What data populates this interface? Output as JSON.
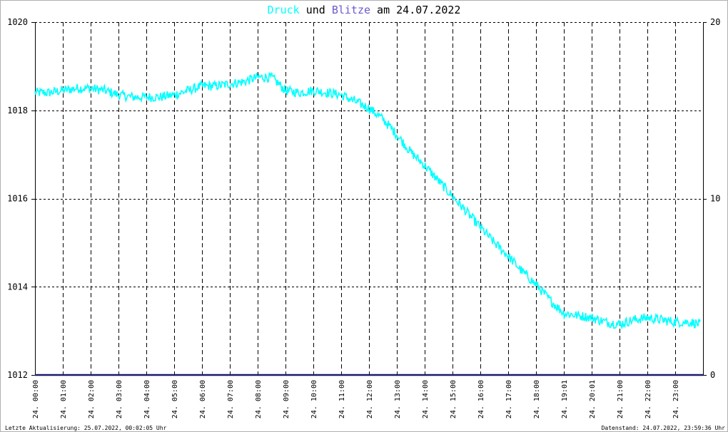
{
  "title": {
    "part1": "Druck",
    "part2": " und ",
    "part3": "Blitze",
    "part4": " am 24.07.2022",
    "color1": "#00ffff",
    "color3": "#6a5acd",
    "color_text": "#000000"
  },
  "footer": {
    "left": "Letzte Aktualisierung: 25.07.2022, 00:02:05 Uhr",
    "right": "Datenstand: 24.07.2022, 23:59:36 Uhr"
  },
  "chart_data": {
    "type": "line",
    "title": "Druck und Blitze am 24.07.2022",
    "ylim_left": [
      1012,
      1020
    ],
    "yticks_left": [
      "1020",
      "1018",
      "1016",
      "1014",
      "1012"
    ],
    "ylim_right": [
      0,
      20
    ],
    "yticks_right": [
      "20",
      "10",
      "0"
    ],
    "xlim_hours": [
      0,
      24
    ],
    "x_tick_labels": [
      "24. 00:00",
      "24. 01:00",
      "24. 02:00",
      "24. 03:00",
      "24. 04:00",
      "24. 05:00",
      "24. 06:00",
      "24. 07:00",
      "24. 08:00",
      "24. 09:00",
      "24. 10:00",
      "24. 11:00",
      "24. 12:00",
      "24. 13:00",
      "24. 14:00",
      "24. 15:00",
      "24. 16:00",
      "24. 17:00",
      "24. 18:00",
      "24. 19:01",
      "24. 20:01",
      "24. 21:00",
      "24. 22:00",
      "24. 23:00"
    ],
    "x_tick_hours": [
      0,
      1,
      2,
      3,
      4,
      5,
      6,
      7,
      8,
      9,
      10,
      11,
      12,
      13,
      14,
      15,
      16,
      17,
      18,
      19,
      20,
      21,
      22,
      23
    ],
    "grid": true,
    "series": [
      {
        "name": "Druck",
        "color": "#00ffff",
        "axis": "left",
        "x": [
          0,
          0.5,
          1,
          1.5,
          2,
          2.5,
          3,
          3.5,
          4,
          4.5,
          5,
          5.5,
          6,
          6.5,
          7,
          7.5,
          8,
          8.5,
          9,
          9.5,
          10,
          10.5,
          11,
          11.5,
          12,
          12.5,
          13,
          13.5,
          14,
          14.5,
          15,
          15.5,
          16,
          16.5,
          17,
          17.5,
          18,
          18.5,
          19,
          19.5,
          20,
          20.5,
          21,
          21.5,
          22,
          22.5,
          23,
          23.5,
          23.9
        ],
        "values": [
          1018.4,
          1018.4,
          1018.45,
          1018.5,
          1018.5,
          1018.45,
          1018.35,
          1018.3,
          1018.3,
          1018.3,
          1018.35,
          1018.45,
          1018.55,
          1018.55,
          1018.6,
          1018.65,
          1018.75,
          1018.75,
          1018.45,
          1018.4,
          1018.45,
          1018.4,
          1018.35,
          1018.2,
          1018.05,
          1017.8,
          1017.45,
          1017.05,
          1016.75,
          1016.4,
          1016.05,
          1015.7,
          1015.35,
          1015.0,
          1014.7,
          1014.35,
          1014.05,
          1013.7,
          1013.4,
          1013.35,
          1013.3,
          1013.2,
          1013.15,
          1013.25,
          1013.3,
          1013.25,
          1013.2,
          1013.2,
          1013.15
        ]
      },
      {
        "name": "Blitze",
        "color": "#1a1a6e",
        "axis": "right",
        "x": [
          0,
          24
        ],
        "values": [
          0,
          0
        ]
      }
    ]
  }
}
